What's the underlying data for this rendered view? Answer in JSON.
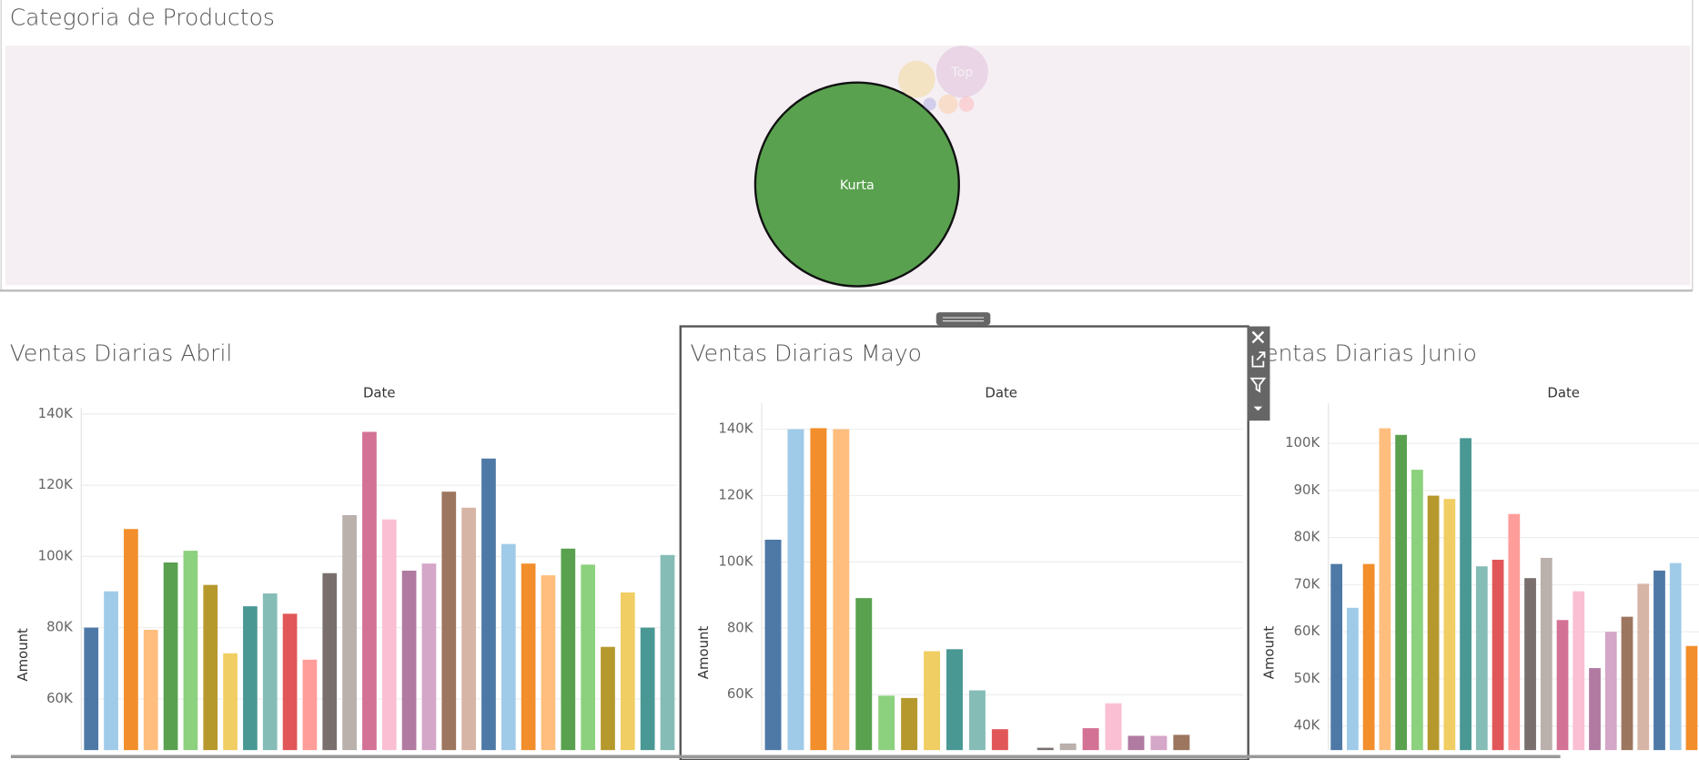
{
  "chart_data": [
    {
      "type": "bubble",
      "title": "Categoria de Productos",
      "labels": [
        "Kurta",
        "Top",
        null,
        null,
        null,
        null
      ],
      "values": [
        100,
        6.5,
        3.3,
        0.4,
        0.9,
        0.55
      ],
      "colors": [
        "#59a14f",
        "#d4a6c8",
        "#f1ce63",
        "#8f8fd8",
        "#ffbe7d",
        "#ff9d9a"
      ],
      "highlighted": "Kurta"
    },
    {
      "type": "bar",
      "title": "Ventas Diarias Abril",
      "x_label": "Date",
      "y_label": "Amount",
      "categories": [
        null,
        null,
        null,
        null,
        null,
        null,
        null,
        null,
        null,
        null,
        null,
        null,
        null,
        null,
        null,
        null,
        null,
        null,
        null,
        null,
        null,
        null,
        null,
        null,
        null,
        null,
        null,
        null,
        null,
        null
      ],
      "values": [
        80000,
        90200,
        107700,
        79400,
        98300,
        101600,
        92000,
        72800,
        86000,
        89600,
        83900,
        71000,
        95300,
        111600,
        135000,
        110400,
        96000,
        98000,
        118200,
        113700,
        127500,
        103500,
        98000,
        94700,
        102200,
        97700,
        74600,
        89900,
        80000,
        100400
      ],
      "palette": [
        "#4e79a7",
        "#a0cbe8",
        "#f28e2b",
        "#ffbe7d",
        "#59a14f",
        "#8cd17d",
        "#b6992d",
        "#f1ce63",
        "#499894",
        "#86bcb6",
        "#e15759",
        "#ff9d9a",
        "#79706e",
        "#bab0ac",
        "#d37295",
        "#fabfd2",
        "#b07aa1",
        "#d4a6c8",
        "#9d7660",
        "#d7b5a6"
      ],
      "ylim": [
        45600,
        141800
      ],
      "yticks": [
        {
          "value": 60000,
          "label": "60K"
        },
        {
          "value": 80000,
          "label": "80K"
        },
        {
          "value": 100000,
          "label": "100K"
        },
        {
          "value": 120000,
          "label": "120K"
        },
        {
          "value": 140000,
          "label": "140K"
        }
      ],
      "grid": true
    },
    {
      "type": "bar",
      "title": "Ventas Diarias Mayo",
      "x_label": "Date",
      "y_label": "Amount",
      "categories": [
        null,
        null,
        null,
        null,
        null,
        null,
        null,
        null,
        null,
        null,
        null,
        null,
        null,
        null,
        null,
        null,
        null,
        null,
        null
      ],
      "values": [
        106700,
        140000,
        140300,
        140000,
        89100,
        59700,
        59000,
        73100,
        73700,
        61300,
        49600,
        40000,
        44000,
        45300,
        49900,
        57400,
        47600,
        47600,
        47900
      ],
      "palette": [
        "#4e79a7",
        "#a0cbe8",
        "#f28e2b",
        "#ffbe7d",
        "#59a14f",
        "#8cd17d",
        "#b6992d",
        "#f1ce63",
        "#499894",
        "#86bcb6",
        "#e15759",
        "#ff9d9a",
        "#79706e",
        "#bab0ac",
        "#d37295",
        "#fabfd2",
        "#b07aa1",
        "#d4a6c8",
        "#9d7660",
        "#d7b5a6"
      ],
      "ylim": [
        43300,
        147800
      ],
      "yticks": [
        {
          "value": 60000,
          "label": "60K"
        },
        {
          "value": 80000,
          "label": "80K"
        },
        {
          "value": 100000,
          "label": "100K"
        },
        {
          "value": 120000,
          "label": "120K"
        },
        {
          "value": 140000,
          "label": "140K"
        }
      ],
      "grid": true
    },
    {
      "type": "bar",
      "title": "Ventas Diarias Junio",
      "x_label": "Date",
      "y_label": "Amount",
      "categories": [
        null,
        null,
        null,
        null,
        null,
        null,
        null,
        null,
        null,
        null,
        null,
        null,
        null,
        null,
        null,
        null,
        null,
        null,
        null,
        null,
        null,
        null,
        null
      ],
      "values": [
        74400,
        65100,
        74400,
        103200,
        101800,
        94400,
        88900,
        88200,
        101100,
        73900,
        75300,
        85000,
        71400,
        75700,
        62500,
        68600,
        52300,
        60000,
        63200,
        70200,
        73000,
        74600,
        57000
      ],
      "palette": [
        "#4e79a7",
        "#a0cbe8",
        "#f28e2b",
        "#ffbe7d",
        "#59a14f",
        "#8cd17d",
        "#b6992d",
        "#f1ce63",
        "#499894",
        "#86bcb6",
        "#e15759",
        "#ff9d9a",
        "#79706e",
        "#bab0ac",
        "#d37295",
        "#fabfd2",
        "#b07aa1",
        "#d4a6c8",
        "#9d7660",
        "#d7b5a6"
      ],
      "ylim": [
        34900,
        108500
      ],
      "yticks": [
        {
          "value": 40000,
          "label": "40K"
        },
        {
          "value": 50000,
          "label": "50K"
        },
        {
          "value": 60000,
          "label": "60K"
        },
        {
          "value": 70000,
          "label": "70K"
        },
        {
          "value": 80000,
          "label": "80K"
        },
        {
          "value": 90000,
          "label": "90K"
        },
        {
          "value": 100000,
          "label": "100K"
        }
      ],
      "grid": true
    }
  ]
}
